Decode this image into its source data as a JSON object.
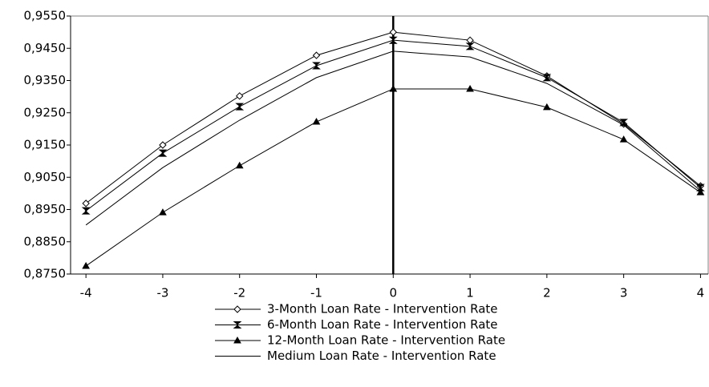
{
  "chart_data": {
    "type": "line",
    "x": [
      -4,
      -3,
      -2,
      -1,
      0,
      1,
      2,
      3,
      4
    ],
    "series": [
      {
        "name": "3-Month Loan Rate - Intervention Rate",
        "color": "#000000",
        "marker": "diamond",
        "values": [
          0.8969,
          0.915,
          0.9302,
          0.9428,
          0.95,
          0.9475,
          0.9364,
          0.9215,
          0.9023
        ]
      },
      {
        "name": "6-Month Loan Rate - Intervention Rate",
        "color": "#000000",
        "marker": "bowtie",
        "values": [
          0.8946,
          0.9125,
          0.9269,
          0.9396,
          0.9475,
          0.9456,
          0.9359,
          0.922,
          0.9018
        ]
      },
      {
        "name": "12-Month Loan Rate - Intervention Rate",
        "color": "#000000",
        "marker": "triangle",
        "values": [
          0.8775,
          0.8941,
          0.9086,
          0.9222,
          0.9324,
          0.9324,
          0.9267,
          0.9167,
          0.9003
        ]
      },
      {
        "name": "Medium Loan Rate - Intervention Rate",
        "color": "#000000",
        "marker": "none",
        "values": [
          0.8902,
          0.908,
          0.9227,
          0.9359,
          0.9441,
          0.9423,
          0.9341,
          0.9212,
          0.9008
        ]
      }
    ],
    "xlim": [
      -4.2,
      4.1
    ],
    "xticks": [
      -4,
      -3,
      -2,
      -1,
      0,
      1,
      2,
      3,
      4
    ],
    "ylim": [
      0.875,
      0.955
    ],
    "yticks": [
      {
        "value": 0.875,
        "label": "0,8750"
      },
      {
        "value": 0.885,
        "label": "0,8850"
      },
      {
        "value": 0.895,
        "label": "0,8950"
      },
      {
        "value": 0.905,
        "label": "0,9050"
      },
      {
        "value": 0.915,
        "label": "0,9150"
      },
      {
        "value": 0.925,
        "label": "0,9250"
      },
      {
        "value": 0.935,
        "label": "0,9350"
      },
      {
        "value": 0.945,
        "label": "0,9450"
      },
      {
        "value": 0.955,
        "label": "0,9550"
      }
    ],
    "vline": 0,
    "legend": "bottom"
  }
}
